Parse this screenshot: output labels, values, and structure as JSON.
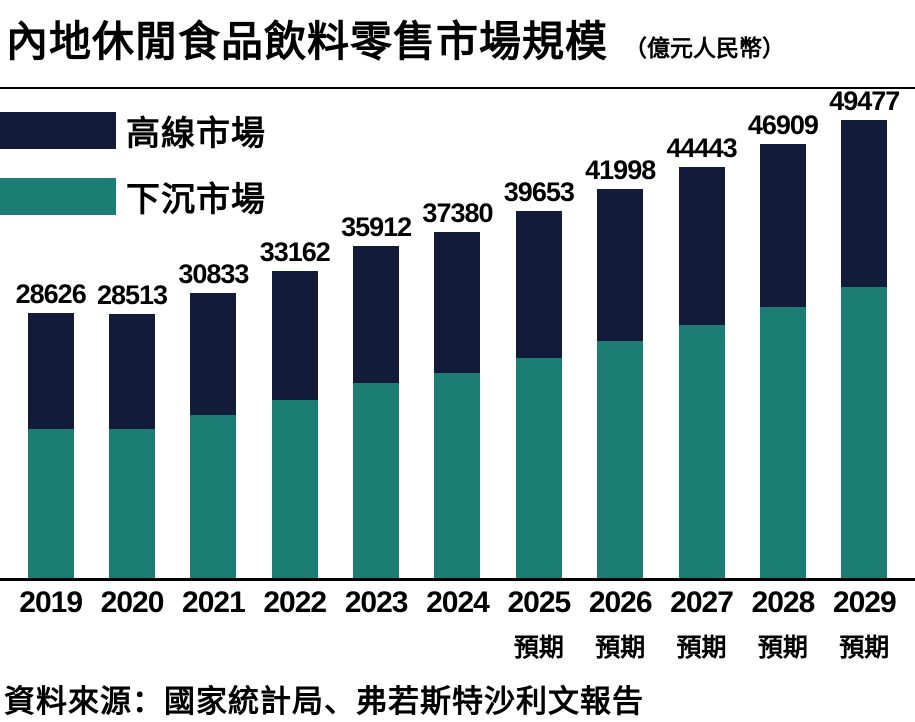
{
  "header": {
    "title": "內地休閒食品飲料零售市場規模",
    "unit": "（億元人民幣）"
  },
  "legend": {
    "items": [
      {
        "label": "高線市場",
        "color": "#131b3a"
      },
      {
        "label": "下沉市場",
        "color": "#1b7d74"
      }
    ]
  },
  "source": "資料來源：國家統計局、弗若斯特沙利文報告",
  "chart_data": {
    "type": "bar",
    "stacked": true,
    "title": "內地休閒食品飲料零售市場規模",
    "unit_label": "（億元人民幣）",
    "categories": [
      "2019",
      "2020",
      "2021",
      "2022",
      "2023",
      "2024",
      "2025",
      "2026",
      "2027",
      "2028",
      "2029"
    ],
    "forecast": [
      false,
      false,
      false,
      false,
      false,
      false,
      true,
      true,
      true,
      true,
      true
    ],
    "forecast_label": "預期",
    "totals": [
      28626,
      28513,
      30833,
      33162,
      35912,
      37380,
      39653,
      41998,
      44443,
      46909,
      49477
    ],
    "series": [
      {
        "name": "下沉市場",
        "color": "#1b7d74",
        "values": [
          16050,
          16100,
          17600,
          19200,
          21100,
          22100,
          23800,
          25600,
          27400,
          29300,
          31400
        ]
      },
      {
        "name": "高線市場",
        "color": "#131b3a",
        "values": [
          12576,
          12413,
          13233,
          13962,
          14812,
          15280,
          15853,
          16398,
          17043,
          17609,
          18077
        ]
      }
    ],
    "ylim": [
      0,
      50000
    ],
    "grid": false,
    "legend_position": "top-left",
    "xlabel": "",
    "ylabel": ""
  }
}
